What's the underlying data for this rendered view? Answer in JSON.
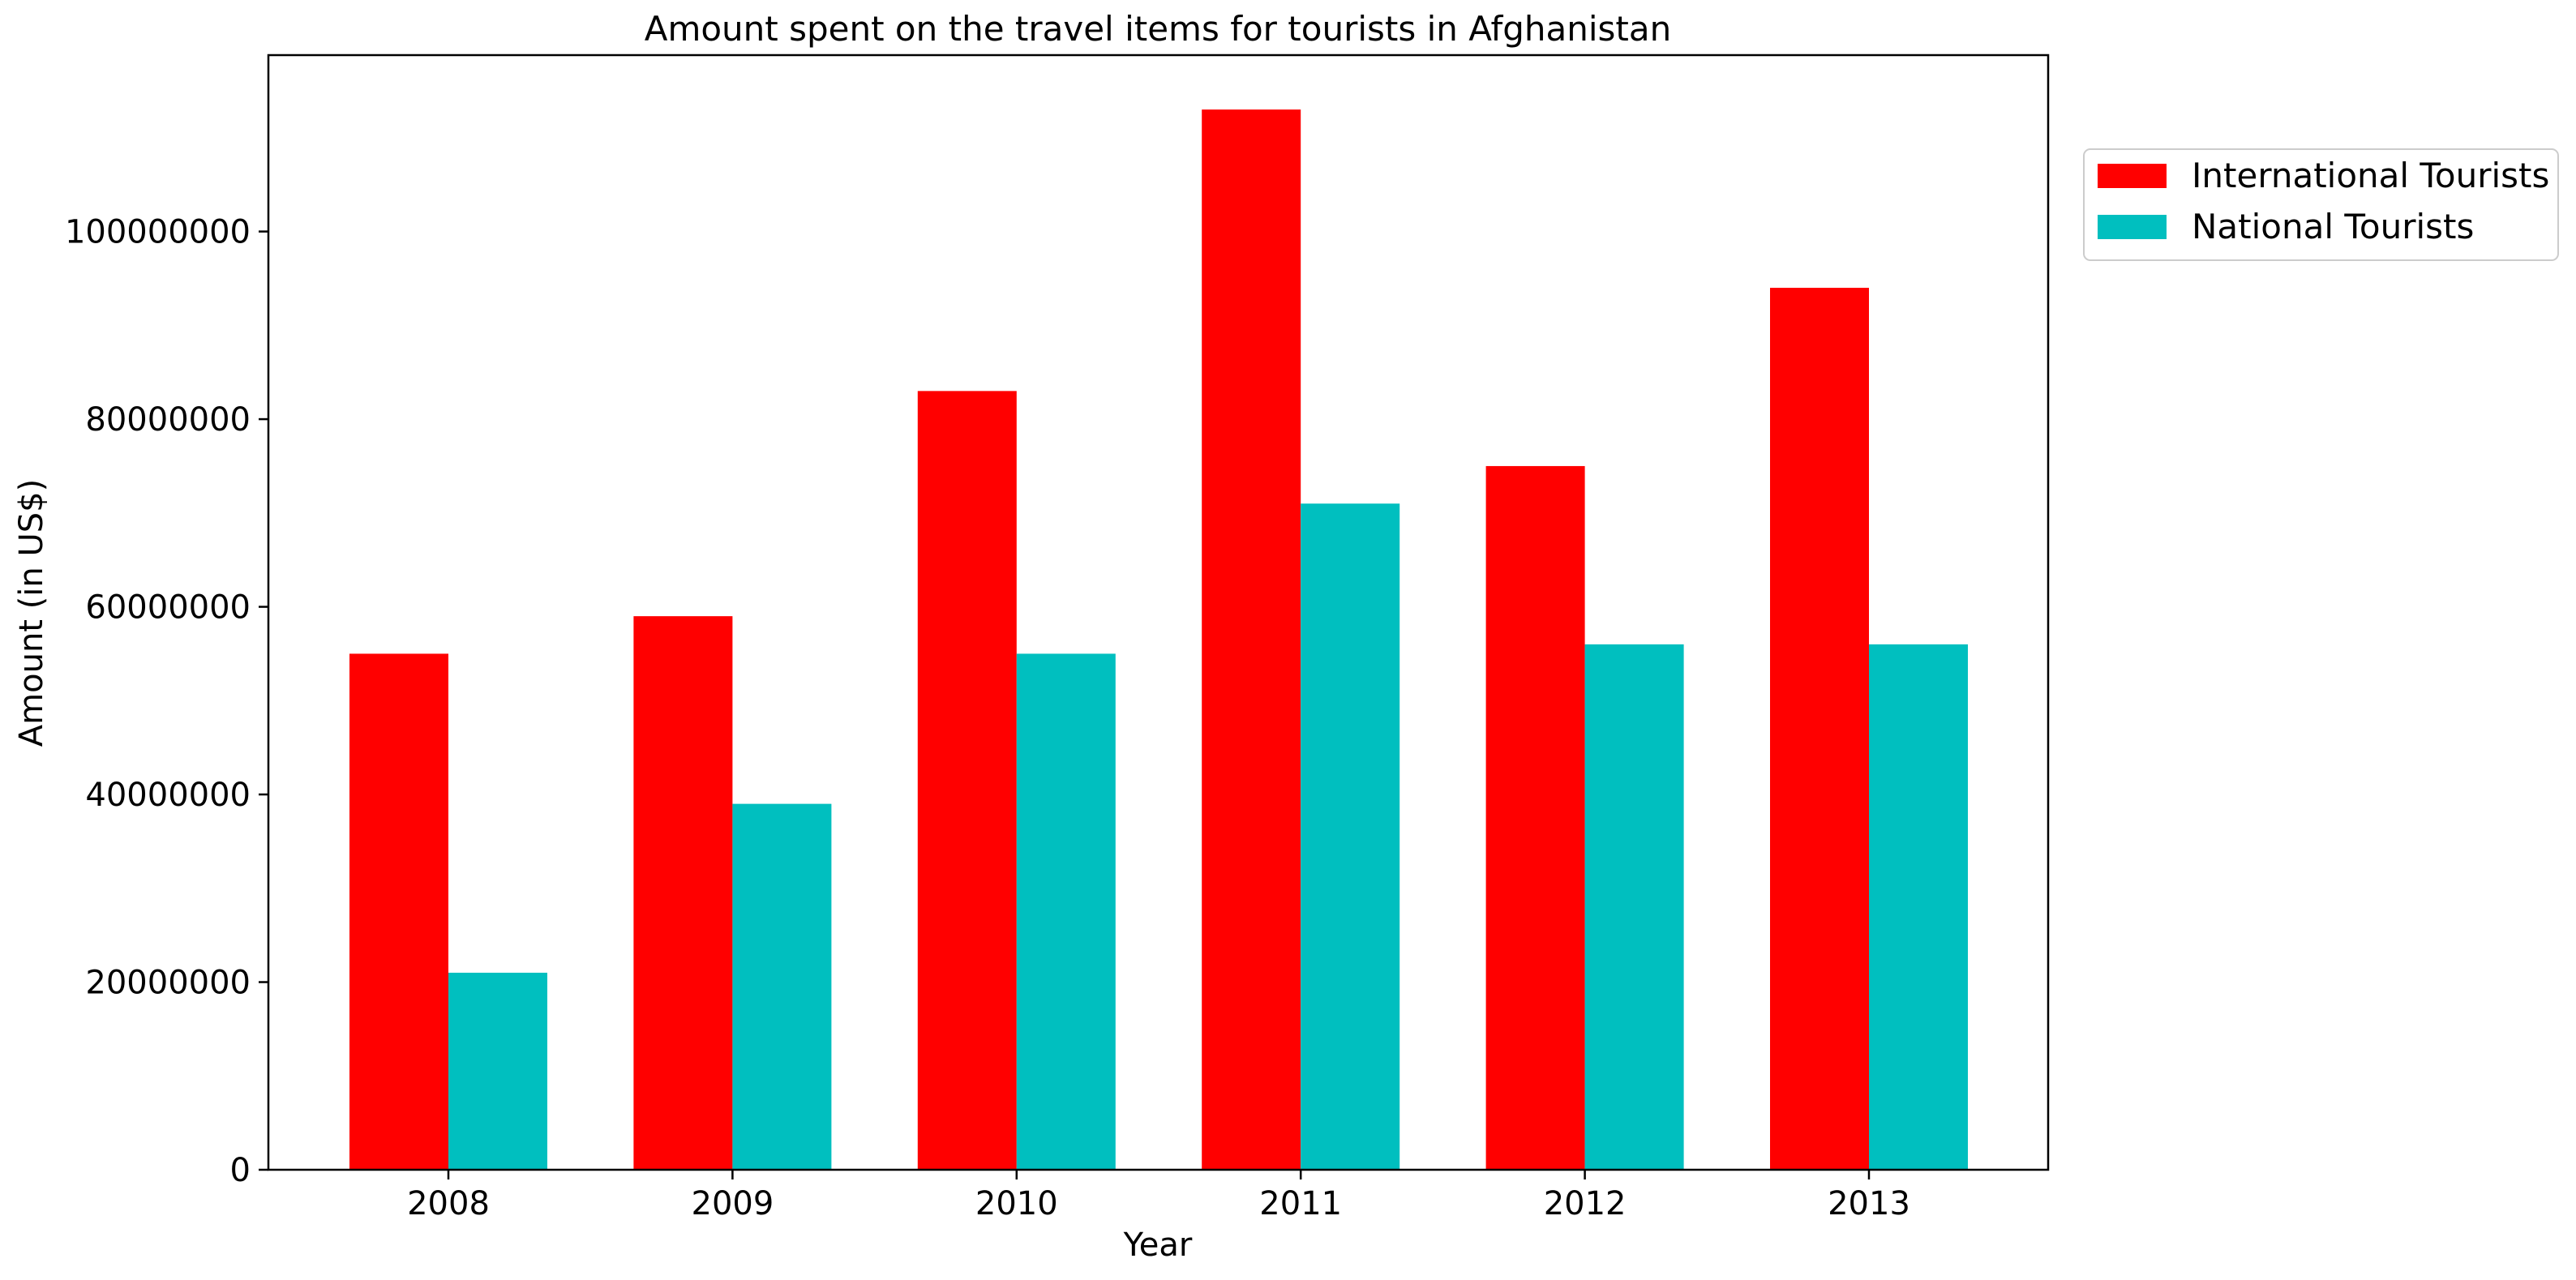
{
  "chart_data": {
    "type": "bar",
    "title": "Amount spent on the travel items for tourists in Afghanistan",
    "xlabel": "Year",
    "ylabel": "Amount (in US$)",
    "categories": [
      "2008",
      "2009",
      "2010",
      "2011",
      "2012",
      "2013"
    ],
    "series": [
      {
        "name": "International Tourists",
        "color": "#ff0000",
        "values": [
          55000000,
          59000000,
          83000000,
          113000000,
          75000000,
          94000000
        ]
      },
      {
        "name": "National Tourists",
        "color": "#00bfbf",
        "values": [
          21000000,
          39000000,
          55000000,
          71000000,
          56000000,
          56000000
        ]
      }
    ],
    "ylim": [
      0,
      118800000
    ],
    "yticks": [
      "0",
      "20000000",
      "40000000",
      "60000000",
      "80000000",
      "100000000"
    ],
    "grid": false,
    "legend_position": "outside-top-right"
  }
}
